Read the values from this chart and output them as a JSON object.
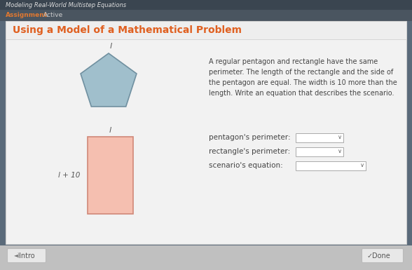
{
  "bg_color": "#5a6a7a",
  "content_bg": "#f0f0f0",
  "top_bar_color": "#3a4a5a",
  "title_text": "Using a Model of a Mathematical Problem",
  "title_color": "#e06020",
  "header_text": "Modeling Real-World Multistep Equations",
  "header_color": "#dddddd",
  "assignment_label": "Assignment",
  "active_label": "Active",
  "assign_color": "#e07830",
  "active_color": "#cccccc",
  "description": "A regular pentagon and rectangle have the same\nperimeter. The length of the rectangle and the side of\nthe pentagon are equal. The width is 10 more than the\nlength. Write an equation that describes the scenario.",
  "description_color": "#444444",
  "pentagon_fill": "#a0bfcc",
  "pentagon_stroke": "#7090a0",
  "rect_fill": "#f5bfb0",
  "rect_stroke": "#d08878",
  "pentagon_label": "l",
  "rect_label_top": "l",
  "rect_label_side": "l + 10",
  "label_font_color": "#555555",
  "field1_label": "pentagon's perimeter:",
  "field2_label": "rectangle's perimeter:",
  "field3_label": "scenario's equation:",
  "field_color": "#ffffff",
  "field_border": "#aaaaaa",
  "intro_btn": "Intro",
  "done_btn": "Done",
  "bottom_bar_color": "#c8c8c8",
  "btn_bg": "#e8e8e8",
  "btn_border": "#bbbbbb",
  "title_bar_color": "#e8e8e8",
  "title_bar_border": "#cccccc"
}
